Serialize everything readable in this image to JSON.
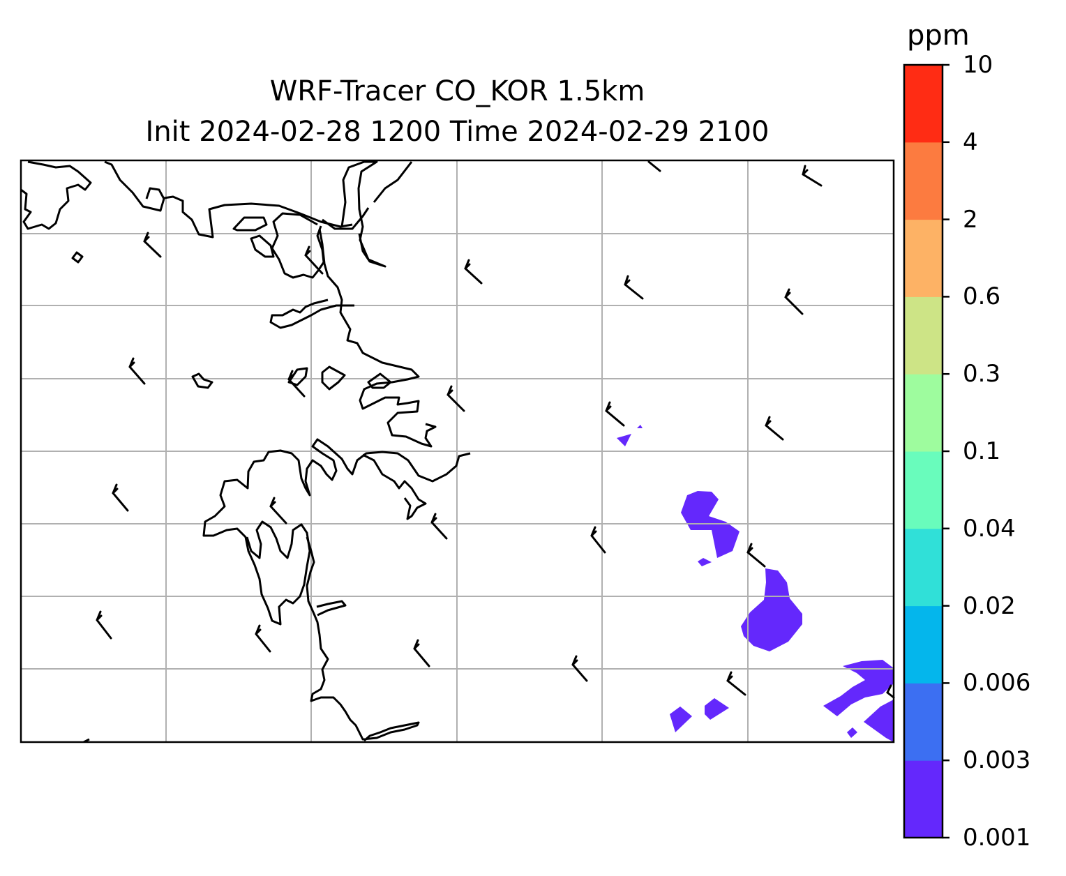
{
  "map": {
    "title_line1": "WRF-Tracer CO_KOR 1.5km",
    "title_line2": "Init 2024-02-28 1200 Time 2024-02-29 2100",
    "variable": "CO_KOR",
    "coastline_color": "#000000",
    "gridline_color": "#b0b0b0",
    "gridlines": true,
    "wind_barbs": true
  },
  "colorbar": {
    "unit": "ppm",
    "levels": [
      {
        "label": "0.001",
        "color": "#6428fc"
      },
      {
        "label": "0.003",
        "color": "#3c6ff2"
      },
      {
        "label": "0.006",
        "color": "#04b6ec"
      },
      {
        "label": "0.02",
        "color": "#30e0d8"
      },
      {
        "label": "0.04",
        "color": "#69fcbc"
      },
      {
        "label": "0.1",
        "color": "#9efc9e"
      },
      {
        "label": "0.3",
        "color": "#cde486"
      },
      {
        "label": "0.6",
        "color": "#fdb265"
      },
      {
        "label": "2",
        "color": "#fc7b40"
      },
      {
        "label": "4",
        "color": "#ff2c14"
      },
      {
        "label": "10",
        "color": ""
      }
    ]
  }
}
